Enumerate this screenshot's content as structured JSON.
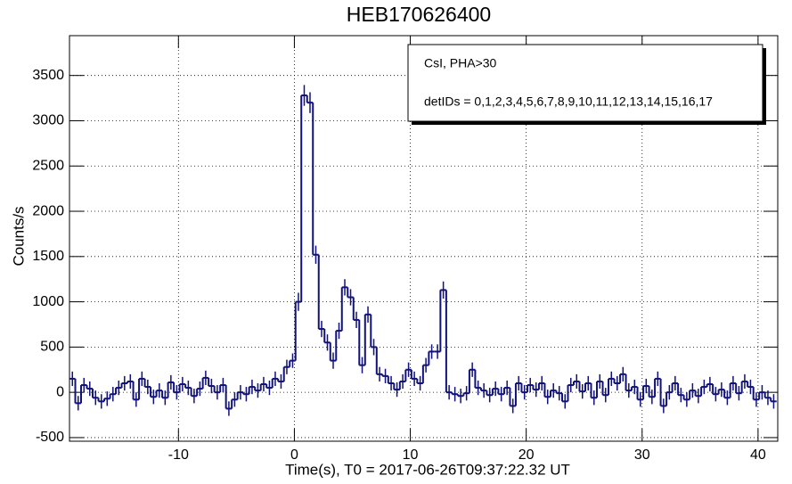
{
  "chart_data": {
    "type": "histogram",
    "title": "HEB170626400",
    "xlabel": "Time(s), T0 = 2017-06-26T09:37:22.32 UT",
    "ylabel": "Counts/s",
    "legend_lines": [
      "CsI, PHA>30",
      "detIDs = 0,1,2,3,4,5,6,7,8,9,10,11,12,13,14,15,16,17"
    ],
    "color": "#11117a",
    "grid": true,
    "xlim": [
      -19.4,
      41.7
    ],
    "ylim": [
      -540,
      3940
    ],
    "xticks": [
      -10,
      0,
      10,
      20,
      30,
      40
    ],
    "yticks": [
      -500,
      0,
      500,
      1000,
      1500,
      2000,
      2500,
      3000,
      3500
    ],
    "bins": [
      -19.4,
      -18.9,
      -18.4,
      -17.9,
      -17.4,
      -16.9,
      -16.4,
      -15.9,
      -15.4,
      -14.9,
      -14.4,
      -13.9,
      -13.4,
      -12.9,
      -12.4,
      -11.9,
      -11.4,
      -10.9,
      -10.4,
      -9.9,
      -9.4,
      -8.9,
      -8.4,
      -7.9,
      -7.4,
      -6.9,
      -6.4,
      -5.9,
      -5.4,
      -4.9,
      -4.4,
      -3.9,
      -3.4,
      -2.9,
      -2.4,
      -1.9,
      -1.4,
      -0.9,
      -0.4,
      0.1,
      0.6,
      1.1,
      1.6,
      2.1,
      2.6,
      3.1,
      3.6,
      4.1,
      4.6,
      5.1,
      5.6,
      6.1,
      6.6,
      7.1,
      7.6,
      8.1,
      8.6,
      9.1,
      9.6,
      10.1,
      10.6,
      11.1,
      11.6,
      12.1,
      12.6,
      13.1,
      13.6,
      14.1,
      14.6,
      15.1,
      15.6,
      16.1,
      16.6,
      17.1,
      17.6,
      18.1,
      18.6,
      19.1,
      19.6,
      20.1,
      20.6,
      21.1,
      21.6,
      22.1,
      22.6,
      23.1,
      23.6,
      24.1,
      24.6,
      25.1,
      25.6,
      26.1,
      26.6,
      27.1,
      27.6,
      28.1,
      28.6,
      29.1,
      29.6,
      30.1,
      30.6,
      31.1,
      31.6,
      32.1,
      32.6,
      33.1,
      33.6,
      34.1,
      34.6,
      35.1,
      35.6,
      36.1,
      36.6,
      37.1,
      37.6,
      38.1,
      38.6,
      39.1,
      39.6,
      40.1,
      40.6,
      41.1,
      41.6
    ],
    "values": [
      150,
      -120,
      80,
      40,
      -60,
      -100,
      -70,
      -20,
      50,
      100,
      120,
      -80,
      150,
      60,
      -50,
      20,
      -60,
      110,
      0,
      90,
      50,
      -40,
      40,
      160,
      70,
      0,
      80,
      -180,
      -80,
      0,
      -20,
      60,
      20,
      90,
      50,
      150,
      120,
      280,
      350,
      1000,
      3280,
      3200,
      1520,
      700,
      550,
      350,
      680,
      1160,
      1050,
      800,
      300,
      860,
      500,
      200,
      180,
      100,
      30,
      120,
      250,
      150,
      100,
      300,
      450,
      450,
      1130,
      0,
      -20,
      -40,
      -10,
      250,
      50,
      20,
      -30,
      40,
      -20,
      50,
      -150,
      100,
      0,
      80,
      30,
      100,
      -50,
      20,
      -10,
      -100,
      80,
      120,
      10,
      100,
      -60,
      120,
      -30,
      150,
      100,
      200,
      20,
      60,
      -80,
      70,
      -50,
      150,
      -150,
      0,
      100,
      -30,
      -80,
      20,
      -40,
      60,
      90,
      -20,
      30,
      -60,
      100,
      -10,
      120,
      60,
      -80,
      0,
      -60,
      -100
    ],
    "errors": [
      80,
      80,
      80,
      80,
      80,
      80,
      80,
      80,
      80,
      80,
      80,
      80,
      80,
      80,
      80,
      80,
      80,
      80,
      80,
      80,
      80,
      80,
      80,
      80,
      80,
      80,
      80,
      80,
      80,
      80,
      80,
      80,
      80,
      80,
      80,
      80,
      80,
      80,
      80,
      100,
      115,
      115,
      100,
      90,
      90,
      90,
      90,
      90,
      90,
      90,
      90,
      90,
      90,
      80,
      80,
      80,
      80,
      80,
      80,
      80,
      80,
      80,
      80,
      80,
      95,
      80,
      80,
      80,
      80,
      80,
      80,
      80,
      80,
      80,
      80,
      80,
      80,
      80,
      80,
      80,
      80,
      80,
      80,
      80,
      80,
      80,
      80,
      80,
      80,
      80,
      80,
      80,
      80,
      80,
      80,
      80,
      80,
      80,
      80,
      80,
      80,
      80,
      80,
      80,
      80,
      80,
      80,
      80,
      80,
      80,
      80,
      80,
      80,
      80,
      80,
      80,
      80,
      80,
      80,
      80,
      80,
      80
    ]
  }
}
